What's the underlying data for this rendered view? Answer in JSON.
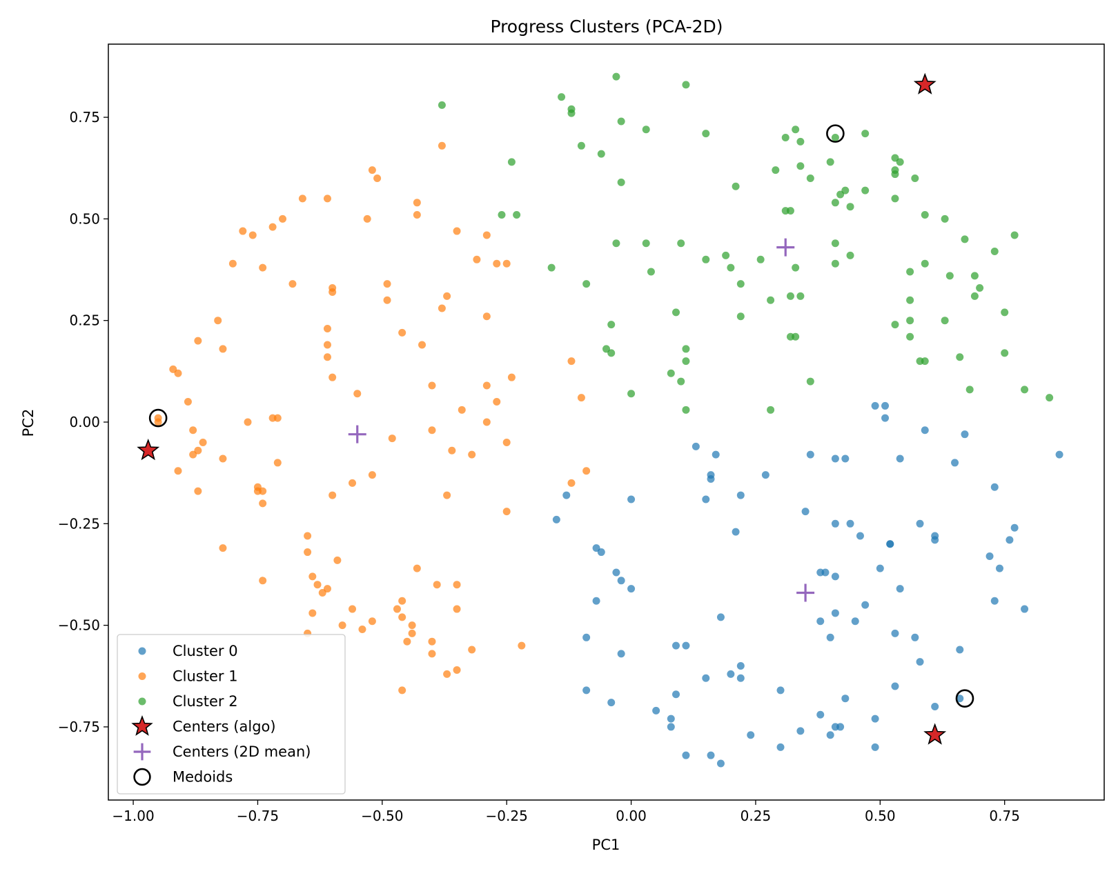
{
  "chart_data": {
    "type": "scatter",
    "title": "Progress Clusters (PCA-2D)",
    "xlabel": "PC1",
    "ylabel": "PC2",
    "xlim": [
      -1.05,
      0.95
    ],
    "ylim": [
      -0.93,
      0.93
    ],
    "xticks": [
      -1.0,
      -0.75,
      -0.5,
      -0.25,
      0.0,
      0.25,
      0.5,
      0.75
    ],
    "xtick_labels": [
      "−1.00",
      "−0.75",
      "−0.50",
      "−0.25",
      "0.00",
      "0.25",
      "0.50",
      "0.75"
    ],
    "yticks": [
      -0.75,
      -0.5,
      -0.25,
      0.0,
      0.25,
      0.5,
      0.75
    ],
    "ytick_labels": [
      "−0.75",
      "−0.50",
      "−0.25",
      "0.00",
      "0.25",
      "0.50",
      "0.75"
    ],
    "grid": false,
    "legend_position": "lower-left",
    "series": [
      {
        "name": "Cluster 0",
        "color": "#1f77b4",
        "marker": "circle",
        "points": [
          [
            0.86,
            -0.08
          ],
          [
            0.67,
            -0.03
          ],
          [
            0.59,
            -0.02
          ],
          [
            0.51,
            0.04
          ],
          [
            0.49,
            0.04
          ],
          [
            0.51,
            0.01
          ],
          [
            0.65,
            -0.1
          ],
          [
            0.54,
            -0.09
          ],
          [
            0.43,
            -0.09
          ],
          [
            0.41,
            -0.09
          ],
          [
            0.36,
            -0.08
          ],
          [
            0.13,
            -0.06
          ],
          [
            0.17,
            -0.08
          ],
          [
            0.27,
            -0.13
          ],
          [
            0.16,
            -0.13
          ],
          [
            0.16,
            -0.14
          ],
          [
            0.22,
            -0.18
          ],
          [
            0.15,
            -0.19
          ],
          [
            0.0,
            -0.19
          ],
          [
            -0.13,
            -0.18
          ],
          [
            -0.15,
            -0.24
          ],
          [
            0.35,
            -0.22
          ],
          [
            0.41,
            -0.25
          ],
          [
            0.44,
            -0.25
          ],
          [
            0.46,
            -0.28
          ],
          [
            0.21,
            -0.27
          ],
          [
            0.52,
            -0.3
          ],
          [
            0.52,
            -0.3
          ],
          [
            0.58,
            -0.25
          ],
          [
            0.61,
            -0.28
          ],
          [
            0.61,
            -0.29
          ],
          [
            0.73,
            -0.16
          ],
          [
            0.77,
            -0.26
          ],
          [
            0.76,
            -0.29
          ],
          [
            0.72,
            -0.33
          ],
          [
            0.74,
            -0.36
          ],
          [
            -0.07,
            -0.31
          ],
          [
            -0.06,
            -0.32
          ],
          [
            -0.03,
            -0.37
          ],
          [
            -0.02,
            -0.39
          ],
          [
            0.0,
            -0.41
          ],
          [
            0.38,
            -0.37
          ],
          [
            0.39,
            -0.37
          ],
          [
            0.41,
            -0.38
          ],
          [
            0.5,
            -0.36
          ],
          [
            0.54,
            -0.41
          ],
          [
            -0.07,
            -0.44
          ],
          [
            0.47,
            -0.45
          ],
          [
            0.41,
            -0.47
          ],
          [
            0.38,
            -0.49
          ],
          [
            0.45,
            -0.49
          ],
          [
            0.18,
            -0.48
          ],
          [
            0.73,
            -0.44
          ],
          [
            0.79,
            -0.46
          ],
          [
            0.53,
            -0.52
          ],
          [
            0.57,
            -0.53
          ],
          [
            0.4,
            -0.53
          ],
          [
            0.66,
            -0.56
          ],
          [
            0.58,
            -0.59
          ],
          [
            -0.09,
            -0.53
          ],
          [
            0.09,
            -0.55
          ],
          [
            0.11,
            -0.55
          ],
          [
            -0.02,
            -0.57
          ],
          [
            0.22,
            -0.6
          ],
          [
            0.2,
            -0.62
          ],
          [
            0.22,
            -0.63
          ],
          [
            0.15,
            -0.63
          ],
          [
            0.3,
            -0.66
          ],
          [
            0.53,
            -0.65
          ],
          [
            -0.09,
            -0.66
          ],
          [
            0.09,
            -0.67
          ],
          [
            0.43,
            -0.68
          ],
          [
            0.66,
            -0.68
          ],
          [
            0.61,
            -0.7
          ],
          [
            -0.04,
            -0.69
          ],
          [
            0.05,
            -0.71
          ],
          [
            0.38,
            -0.72
          ],
          [
            0.49,
            -0.73
          ],
          [
            0.08,
            -0.73
          ],
          [
            0.08,
            -0.75
          ],
          [
            0.41,
            -0.75
          ],
          [
            0.42,
            -0.75
          ],
          [
            0.34,
            -0.76
          ],
          [
            0.24,
            -0.77
          ],
          [
            0.4,
            -0.77
          ],
          [
            0.3,
            -0.8
          ],
          [
            0.49,
            -0.8
          ],
          [
            0.11,
            -0.82
          ],
          [
            0.16,
            -0.82
          ],
          [
            0.18,
            -0.84
          ]
        ]
      },
      {
        "name": "Cluster 1",
        "color": "#ff7f0e",
        "marker": "circle",
        "points": [
          [
            -0.38,
            0.68
          ],
          [
            -0.52,
            0.62
          ],
          [
            -0.51,
            0.6
          ],
          [
            -0.66,
            0.55
          ],
          [
            -0.61,
            0.55
          ],
          [
            -0.43,
            0.54
          ],
          [
            -0.43,
            0.51
          ],
          [
            -0.53,
            0.5
          ],
          [
            -0.7,
            0.5
          ],
          [
            -0.72,
            0.48
          ],
          [
            -0.78,
            0.47
          ],
          [
            -0.76,
            0.46
          ],
          [
            -0.35,
            0.47
          ],
          [
            -0.29,
            0.46
          ],
          [
            -0.31,
            0.4
          ],
          [
            -0.27,
            0.39
          ],
          [
            -0.25,
            0.39
          ],
          [
            -0.8,
            0.39
          ],
          [
            -0.74,
            0.38
          ],
          [
            -0.68,
            0.34
          ],
          [
            -0.6,
            0.33
          ],
          [
            -0.6,
            0.32
          ],
          [
            -0.49,
            0.34
          ],
          [
            -0.49,
            0.3
          ],
          [
            -0.37,
            0.31
          ],
          [
            -0.38,
            0.28
          ],
          [
            -0.29,
            0.26
          ],
          [
            -0.83,
            0.25
          ],
          [
            -0.61,
            0.23
          ],
          [
            -0.46,
            0.22
          ],
          [
            -0.87,
            0.2
          ],
          [
            -0.82,
            0.18
          ],
          [
            -0.42,
            0.19
          ],
          [
            -0.61,
            0.19
          ],
          [
            -0.61,
            0.16
          ],
          [
            -0.92,
            0.13
          ],
          [
            -0.91,
            0.12
          ],
          [
            -0.6,
            0.11
          ],
          [
            -0.24,
            0.11
          ],
          [
            -0.12,
            0.15
          ],
          [
            -0.4,
            0.09
          ],
          [
            -0.29,
            0.09
          ],
          [
            -0.89,
            0.05
          ],
          [
            -0.55,
            0.07
          ],
          [
            -0.27,
            0.05
          ],
          [
            -0.34,
            0.03
          ],
          [
            -0.72,
            0.01
          ],
          [
            -0.71,
            0.01
          ],
          [
            -0.29,
            0.0
          ],
          [
            -0.77,
            0.0
          ],
          [
            -0.1,
            0.06
          ],
          [
            -0.95,
            0.01
          ],
          [
            -0.95,
            0.0
          ],
          [
            -0.88,
            -0.02
          ],
          [
            -0.4,
            -0.02
          ],
          [
            -0.48,
            -0.04
          ],
          [
            -0.86,
            -0.05
          ],
          [
            -0.87,
            -0.07
          ],
          [
            -0.88,
            -0.08
          ],
          [
            -0.82,
            -0.09
          ],
          [
            -0.36,
            -0.07
          ],
          [
            -0.32,
            -0.08
          ],
          [
            -0.25,
            -0.05
          ],
          [
            -0.71,
            -0.1
          ],
          [
            -0.91,
            -0.12
          ],
          [
            -0.09,
            -0.12
          ],
          [
            -0.52,
            -0.13
          ],
          [
            -0.56,
            -0.15
          ],
          [
            -0.12,
            -0.15
          ],
          [
            -0.75,
            -0.16
          ],
          [
            -0.75,
            -0.17
          ],
          [
            -0.74,
            -0.17
          ],
          [
            -0.87,
            -0.17
          ],
          [
            -0.6,
            -0.18
          ],
          [
            -0.37,
            -0.18
          ],
          [
            -0.74,
            -0.2
          ],
          [
            -0.25,
            -0.22
          ],
          [
            -0.65,
            -0.28
          ],
          [
            -0.65,
            -0.32
          ],
          [
            -0.82,
            -0.31
          ],
          [
            -0.59,
            -0.34
          ],
          [
            -0.43,
            -0.36
          ],
          [
            -0.64,
            -0.38
          ],
          [
            -0.74,
            -0.39
          ],
          [
            -0.63,
            -0.4
          ],
          [
            -0.61,
            -0.41
          ],
          [
            -0.62,
            -0.42
          ],
          [
            -0.39,
            -0.4
          ],
          [
            -0.35,
            -0.4
          ],
          [
            -0.46,
            -0.44
          ],
          [
            -0.47,
            -0.46
          ],
          [
            -0.56,
            -0.46
          ],
          [
            -0.35,
            -0.46
          ],
          [
            -0.64,
            -0.47
          ],
          [
            -0.46,
            -0.48
          ],
          [
            -0.52,
            -0.49
          ],
          [
            -0.58,
            -0.5
          ],
          [
            -0.54,
            -0.51
          ],
          [
            -0.44,
            -0.5
          ],
          [
            -0.44,
            -0.52
          ],
          [
            -0.65,
            -0.52
          ],
          [
            -0.45,
            -0.54
          ],
          [
            -0.4,
            -0.54
          ],
          [
            -0.4,
            -0.57
          ],
          [
            -0.32,
            -0.56
          ],
          [
            -0.22,
            -0.55
          ],
          [
            -0.37,
            -0.62
          ],
          [
            -0.35,
            -0.61
          ],
          [
            -0.46,
            -0.66
          ]
        ]
      },
      {
        "name": "Cluster 2",
        "color": "#2ca02c",
        "marker": "circle",
        "points": [
          [
            -0.03,
            0.85
          ],
          [
            0.11,
            0.83
          ],
          [
            -0.38,
            0.78
          ],
          [
            -0.14,
            0.8
          ],
          [
            -0.12,
            0.77
          ],
          [
            -0.12,
            0.76
          ],
          [
            -0.02,
            0.74
          ],
          [
            0.03,
            0.72
          ],
          [
            0.15,
            0.71
          ],
          [
            0.33,
            0.72
          ],
          [
            0.31,
            0.7
          ],
          [
            0.34,
            0.69
          ],
          [
            0.41,
            0.7
          ],
          [
            0.47,
            0.71
          ],
          [
            -0.1,
            0.68
          ],
          [
            -0.06,
            0.66
          ],
          [
            -0.24,
            0.64
          ],
          [
            0.4,
            0.64
          ],
          [
            0.34,
            0.63
          ],
          [
            0.29,
            0.62
          ],
          [
            0.53,
            0.65
          ],
          [
            0.54,
            0.64
          ],
          [
            0.53,
            0.62
          ],
          [
            0.53,
            0.61
          ],
          [
            0.57,
            0.6
          ],
          [
            0.36,
            0.6
          ],
          [
            -0.02,
            0.59
          ],
          [
            0.21,
            0.58
          ],
          [
            0.43,
            0.57
          ],
          [
            0.42,
            0.56
          ],
          [
            0.47,
            0.57
          ],
          [
            0.53,
            0.55
          ],
          [
            0.41,
            0.54
          ],
          [
            0.44,
            0.53
          ],
          [
            0.31,
            0.52
          ],
          [
            0.32,
            0.52
          ],
          [
            -0.26,
            0.51
          ],
          [
            -0.23,
            0.51
          ],
          [
            0.59,
            0.51
          ],
          [
            0.63,
            0.5
          ],
          [
            0.77,
            0.46
          ],
          [
            0.67,
            0.45
          ],
          [
            -0.03,
            0.44
          ],
          [
            0.03,
            0.44
          ],
          [
            0.1,
            0.44
          ],
          [
            0.41,
            0.44
          ],
          [
            0.73,
            0.42
          ],
          [
            0.19,
            0.41
          ],
          [
            0.15,
            0.4
          ],
          [
            0.26,
            0.4
          ],
          [
            0.44,
            0.41
          ],
          [
            0.41,
            0.39
          ],
          [
            0.59,
            0.39
          ],
          [
            -0.16,
            0.38
          ],
          [
            0.2,
            0.38
          ],
          [
            0.33,
            0.38
          ],
          [
            0.04,
            0.37
          ],
          [
            0.56,
            0.37
          ],
          [
            0.64,
            0.36
          ],
          [
            0.69,
            0.36
          ],
          [
            0.22,
            0.34
          ],
          [
            -0.09,
            0.34
          ],
          [
            0.7,
            0.33
          ],
          [
            0.69,
            0.31
          ],
          [
            0.32,
            0.31
          ],
          [
            0.34,
            0.31
          ],
          [
            0.28,
            0.3
          ],
          [
            0.56,
            0.3
          ],
          [
            0.09,
            0.27
          ],
          [
            0.22,
            0.26
          ],
          [
            0.75,
            0.27
          ],
          [
            0.56,
            0.25
          ],
          [
            0.63,
            0.25
          ],
          [
            0.53,
            0.24
          ],
          [
            -0.04,
            0.24
          ],
          [
            0.32,
            0.21
          ],
          [
            0.33,
            0.21
          ],
          [
            0.56,
            0.21
          ],
          [
            -0.05,
            0.18
          ],
          [
            0.11,
            0.18
          ],
          [
            -0.04,
            0.17
          ],
          [
            0.66,
            0.16
          ],
          [
            0.75,
            0.17
          ],
          [
            0.58,
            0.15
          ],
          [
            0.59,
            0.15
          ],
          [
            0.11,
            0.15
          ],
          [
            0.08,
            0.12
          ],
          [
            0.1,
            0.1
          ],
          [
            0.36,
            0.1
          ],
          [
            0.68,
            0.08
          ],
          [
            0.79,
            0.08
          ],
          [
            0.84,
            0.06
          ],
          [
            0.0,
            0.07
          ],
          [
            0.11,
            0.03
          ],
          [
            0.28,
            0.03
          ]
        ]
      },
      {
        "name": "Centers (algo)",
        "color": "#d62728",
        "marker": "star",
        "points": [
          [
            0.59,
            0.83
          ],
          [
            -0.97,
            -0.07
          ],
          [
            0.61,
            -0.77
          ]
        ]
      },
      {
        "name": "Centers (2D mean)",
        "color": "#9467bd",
        "marker": "plus",
        "points": [
          [
            0.31,
            0.43
          ],
          [
            -0.55,
            -0.03
          ],
          [
            0.35,
            -0.42
          ]
        ]
      },
      {
        "name": "Medoids",
        "color": "#000000",
        "marker": "ring",
        "points": [
          [
            0.41,
            0.71
          ],
          [
            -0.95,
            0.01
          ],
          [
            0.67,
            -0.68
          ]
        ]
      }
    ]
  }
}
